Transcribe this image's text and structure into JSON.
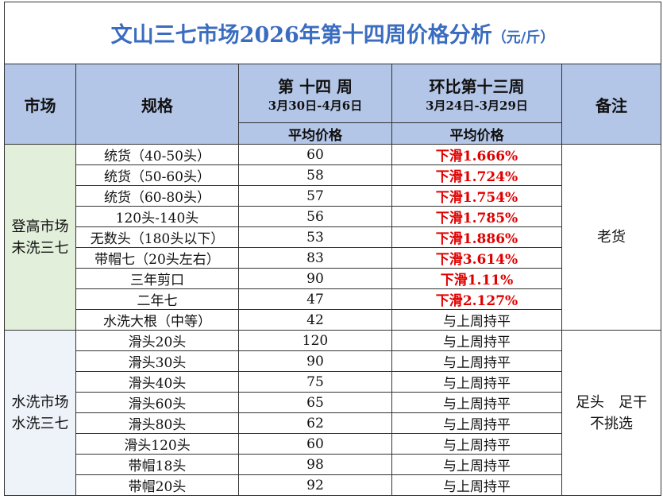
{
  "title": "文山三七市场2026年第十四周价格分析",
  "title_unit": "（元/斤）",
  "header": {
    "market": "市场",
    "spec": "规格",
    "week": "第 十四 周",
    "week_dates": "3月30日-4月6日",
    "compare": "环比第十三周",
    "compare_dates": "3月24日-3月29日",
    "avg_price": "平均价格",
    "compare_sub": "平均价格",
    "note": "备注"
  },
  "groups": [
    {
      "market": [
        "登高市场",
        "未洗三七"
      ],
      "note": [
        "老货"
      ],
      "rows": [
        {
          "spec": "统货（40-50头）",
          "price": 60,
          "change": "下滑1.666%",
          "color": "#e00000"
        },
        {
          "spec": "统货（50-60头）",
          "price": 58,
          "change": "下滑1.724%",
          "color": "#e00000"
        },
        {
          "spec": "统货（60-80头）",
          "price": 57,
          "change": "下滑1.754%",
          "color": "#e00000"
        },
        {
          "spec": "120头-140头",
          "price": 56,
          "change": "下滑1.785%",
          "color": "#e00000"
        },
        {
          "spec": "无数头（180头以下）",
          "price": 53,
          "change": "下滑1.886%",
          "color": "#e00000"
        },
        {
          "spec": "带帽七（20头左右）",
          "price": 83,
          "change": "下滑3.614%",
          "color": "#e00000"
        },
        {
          "spec": "三年剪口",
          "price": 90,
          "change": "下滑1.11%",
          "color": "#e00000"
        },
        {
          "spec": "二年七",
          "price": 47,
          "change": "下滑2.127%",
          "color": "#e00000"
        },
        {
          "spec": "水洗大根（中等）",
          "price": 42,
          "change": "与上周持平"
        }
      ]
    },
    {
      "market": [
        "水洗市场",
        "水洗三七"
      ],
      "note": [
        "足头　足干",
        "不挑选"
      ],
      "rows": [
        {
          "spec": "滑头20头",
          "price": 120,
          "change": "与上周持平"
        },
        {
          "spec": "滑头30头",
          "price": 90,
          "change": "与上周持平"
        },
        {
          "spec": "滑头40头",
          "price": 75,
          "change": "与上周持平"
        },
        {
          "spec": "滑头60头",
          "price": 65,
          "change": "与上周持平"
        },
        {
          "spec": "滑头80头",
          "price": 62,
          "change": "与上周持平"
        },
        {
          "spec": "滑头120头",
          "price": 60,
          "change": "与上周持平"
        },
        {
          "spec": "带帽18头",
          "price": 98,
          "change": "与上周持平"
        },
        {
          "spec": "带帽20头",
          "price": 92,
          "change": "与上周持平"
        }
      ]
    }
  ]
}
